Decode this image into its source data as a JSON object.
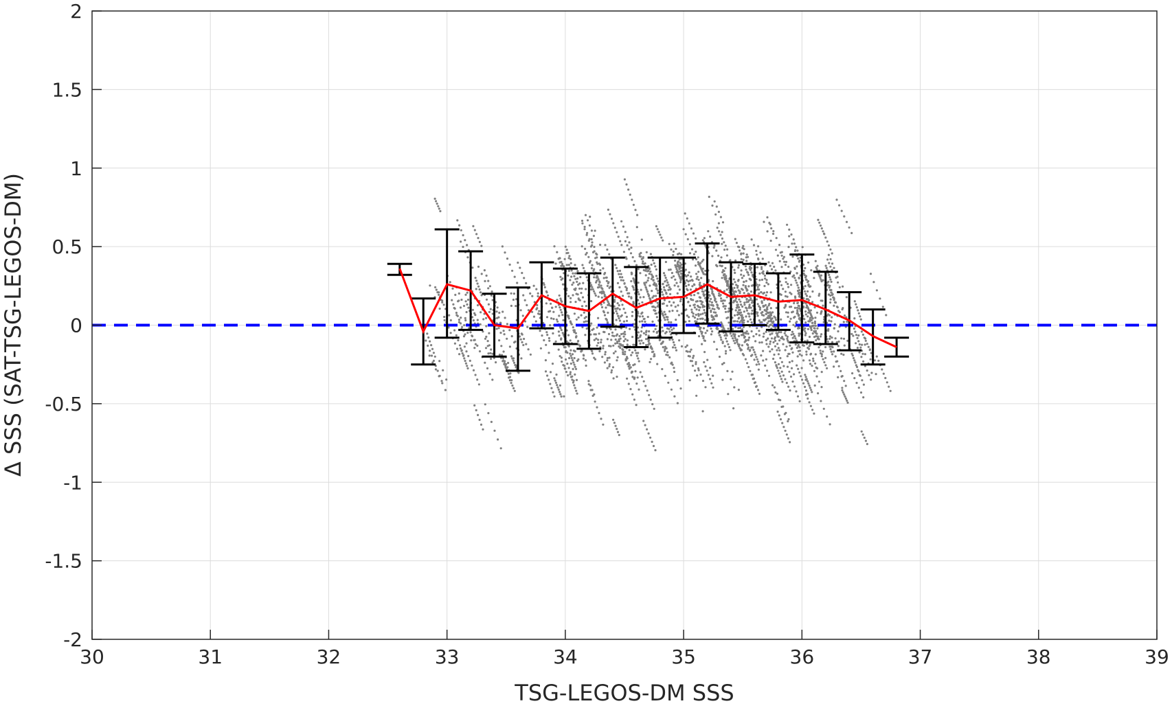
{
  "chart_data": {
    "type": "scatter",
    "xlabel": "TSG-LEGOS-DM SSS",
    "ylabel": "Δ SSS (SAT-TSG-LEGOS-DM)",
    "xlim": [
      30,
      39
    ],
    "ylim": [
      -2,
      2
    ],
    "xticks": [
      30,
      31,
      32,
      33,
      34,
      35,
      36,
      37,
      38,
      39
    ],
    "yticks": [
      -2,
      -1.5,
      -1,
      -0.5,
      0,
      0.5,
      1,
      1.5,
      2
    ],
    "grid": true,
    "legend": "none",
    "colors": {
      "scatter": "#808080",
      "mean_line": "#ff0000",
      "zero_line": "#0000ff",
      "errorbar": "#000000",
      "grid": "#dcdcdc",
      "axes": "#262626"
    },
    "scatter_cloud": {
      "description_of_extent": "dense diagonal streaks",
      "x_range": [
        32.8,
        36.7
      ],
      "y_range": [
        -0.95,
        1.12
      ]
    },
    "reference_line": {
      "y": 0,
      "style": "dashed"
    },
    "bins": [
      {
        "x": 32.6,
        "mean": 0.36,
        "low": 0.32,
        "high": 0.39
      },
      {
        "x": 32.8,
        "mean": -0.04,
        "low": -0.25,
        "high": 0.17
      },
      {
        "x": 33.0,
        "mean": 0.26,
        "low": -0.08,
        "high": 0.61
      },
      {
        "x": 33.2,
        "mean": 0.22,
        "low": -0.03,
        "high": 0.47
      },
      {
        "x": 33.4,
        "mean": 0.0,
        "low": -0.2,
        "high": 0.2
      },
      {
        "x": 33.6,
        "mean": -0.02,
        "low": -0.29,
        "high": 0.24
      },
      {
        "x": 33.8,
        "mean": 0.19,
        "low": -0.02,
        "high": 0.4
      },
      {
        "x": 34.0,
        "mean": 0.12,
        "low": -0.12,
        "high": 0.36
      },
      {
        "x": 34.2,
        "mean": 0.09,
        "low": -0.15,
        "high": 0.33
      },
      {
        "x": 34.4,
        "mean": 0.2,
        "low": -0.01,
        "high": 0.43
      },
      {
        "x": 34.6,
        "mean": 0.11,
        "low": -0.14,
        "high": 0.37
      },
      {
        "x": 34.8,
        "mean": 0.17,
        "low": -0.08,
        "high": 0.43
      },
      {
        "x": 35.0,
        "mean": 0.18,
        "low": -0.05,
        "high": 0.43
      },
      {
        "x": 35.2,
        "mean": 0.26,
        "low": 0.01,
        "high": 0.52
      },
      {
        "x": 35.4,
        "mean": 0.18,
        "low": -0.04,
        "high": 0.4
      },
      {
        "x": 35.6,
        "mean": 0.19,
        "low": 0.0,
        "high": 0.39
      },
      {
        "x": 35.8,
        "mean": 0.15,
        "low": -0.03,
        "high": 0.33
      },
      {
        "x": 36.0,
        "mean": 0.16,
        "low": -0.11,
        "high": 0.45
      },
      {
        "x": 36.2,
        "mean": 0.1,
        "low": -0.12,
        "high": 0.34
      },
      {
        "x": 36.4,
        "mean": 0.03,
        "low": -0.16,
        "high": 0.21
      },
      {
        "x": 36.6,
        "mean": -0.07,
        "low": -0.25,
        "high": 0.1
      },
      {
        "x": 36.8,
        "mean": -0.14,
        "low": -0.2,
        "high": -0.08
      }
    ]
  }
}
